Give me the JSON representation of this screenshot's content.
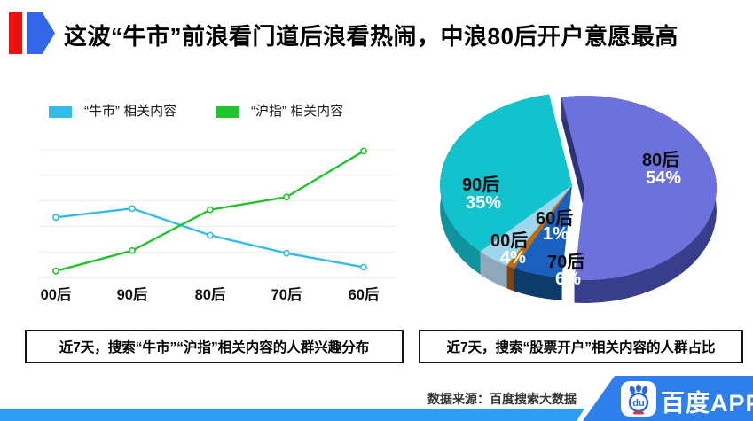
{
  "header": {
    "title": "这波“牛市”前浪看门道后浪看热闹，中浪80后开户意愿最高",
    "red_bar_color": "#E8120F",
    "blue_arrow_color": "#3366E8"
  },
  "line_section": {
    "caption": "近7天，搜索“牛市”“沪指”相关内容的人群兴趣分布"
  },
  "pie_section": {
    "caption": "近7天，搜索“股票开户”相关内容的人群占比"
  },
  "chart_data": [
    {
      "type": "line",
      "title": "近7天，搜索“牛市”“沪指”相关内容的人群兴趣分布",
      "categories": [
        "00后",
        "90后",
        "80后",
        "70后",
        "60后"
      ],
      "series": [
        {
          "name": "“牛市” 相关内容",
          "color": "#33BCEA",
          "values": [
            47,
            54,
            33,
            19,
            8
          ]
        },
        {
          "name": "“沪指” 相关内容",
          "color": "#21C42B",
          "values": [
            5,
            21,
            53,
            63,
            99
          ]
        }
      ],
      "ylim": [
        0,
        100
      ],
      "grid": true,
      "grid_color": "#ECECEC",
      "legend_position": "top"
    },
    {
      "type": "pie",
      "style": "3d-exploded",
      "title": "近7天，搜索“股票开户”相关内容的人群占比",
      "labels": [
        "80后",
        "70后",
        "60后",
        "00后",
        "90后"
      ],
      "values": [
        54,
        6,
        1,
        4,
        35
      ],
      "colors": [
        "#6C71DB",
        "#1A60BF",
        "#C0690F",
        "#9ED6EE",
        "#12C3CD"
      ],
      "side_colors": [
        "#383E8C",
        "#0D3C6B",
        "#7E4410",
        "#8FA9BC",
        "#0F949E"
      ],
      "cut_face_color": "#2C3277",
      "exploded": "80后"
    }
  ],
  "footer": {
    "source": "数据来源：百度搜索大数据",
    "brand_name": "百度APP",
    "logo_monogram": "du",
    "bottom_bar_color": "#2D9CF4",
    "badge_color": "#2E7EEC",
    "logo_blue": "#2A66E8",
    "logo_red": "#E8343D"
  }
}
